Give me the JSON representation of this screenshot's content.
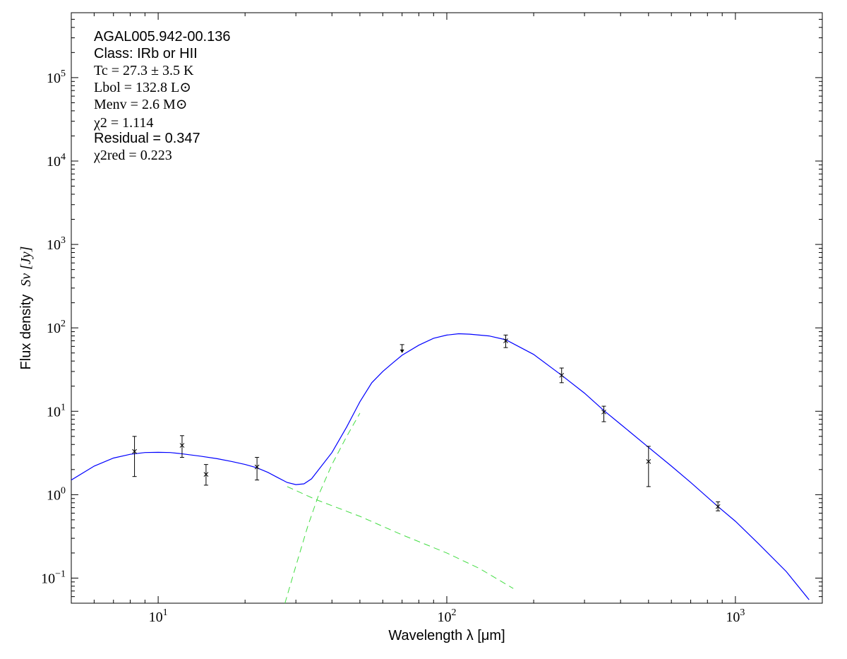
{
  "chart_data": {
    "type": "scatter",
    "xscale": "log",
    "yscale": "log",
    "xlim": [
      5,
      2000
    ],
    "ylim": [
      0.05,
      600000
    ],
    "xlabel": "Wavelength λ [μm]",
    "ylabel_prefix": "Flux density",
    "ylabel_math": "Sν [Jy]",
    "x_ticks": [
      {
        "value": 10,
        "base": "10",
        "exp": "1"
      },
      {
        "value": 100,
        "base": "10",
        "exp": "2"
      },
      {
        "value": 1000,
        "base": "10",
        "exp": "3"
      }
    ],
    "y_ticks": [
      {
        "value": 0.1,
        "base": "10",
        "exp": "−1"
      },
      {
        "value": 1,
        "base": "10",
        "exp": "0"
      },
      {
        "value": 10,
        "base": "10",
        "exp": "1"
      },
      {
        "value": 100,
        "base": "10",
        "exp": "2"
      },
      {
        "value": 1000,
        "base": "10",
        "exp": "3"
      },
      {
        "value": 10000,
        "base": "10",
        "exp": "4"
      },
      {
        "value": 100000,
        "base": "10",
        "exp": "5"
      }
    ],
    "annotations": {
      "source": "AGAL005.942-00.136",
      "class": "Class: IRb or HII",
      "tc": "Tc = 27.3 ± 3.5 K",
      "lbol": "Lbol = 132.8 L⊙",
      "menv": "Menv = 2.6 M⊙",
      "chi2": "χ2 = 1.114",
      "residual": "Residual = 0.347",
      "chi2red": "χ2red = 0.223"
    },
    "points": [
      {
        "x": 8.28,
        "y": 3.3,
        "ylow": 1.65,
        "yhigh": 5.0
      },
      {
        "x": 12.1,
        "y": 3.9,
        "ylow": 2.8,
        "yhigh": 5.1
      },
      {
        "x": 14.65,
        "y": 1.75,
        "ylow": 1.3,
        "yhigh": 2.3
      },
      {
        "x": 22.0,
        "y": 2.15,
        "ylow": 1.5,
        "yhigh": 2.8
      },
      {
        "x": 160,
        "y": 70,
        "ylow": 58,
        "yhigh": 82
      },
      {
        "x": 250,
        "y": 27,
        "ylow": 22,
        "yhigh": 33
      },
      {
        "x": 350,
        "y": 9.8,
        "ylow": 7.5,
        "yhigh": 11.5
      },
      {
        "x": 500,
        "y": 2.5,
        "ylow": 1.25,
        "yhigh": 3.8
      },
      {
        "x": 870,
        "y": 0.72,
        "ylow": 0.64,
        "yhigh": 0.82
      }
    ],
    "upper_limits": [
      {
        "x": 70,
        "y": 63
      }
    ],
    "series": [
      {
        "color": "#0000ff",
        "style": "solid",
        "points": [
          [
            5,
            1.5
          ],
          [
            6,
            2.2
          ],
          [
            7,
            2.75
          ],
          [
            8,
            3.05
          ],
          [
            9,
            3.2
          ],
          [
            10,
            3.22
          ],
          [
            11,
            3.2
          ],
          [
            12,
            3.1
          ],
          [
            14,
            2.9
          ],
          [
            16,
            2.7
          ],
          [
            18,
            2.5
          ],
          [
            20,
            2.3
          ],
          [
            22,
            2.1
          ],
          [
            24,
            1.85
          ],
          [
            26,
            1.6
          ],
          [
            28,
            1.4
          ],
          [
            30,
            1.32
          ],
          [
            32,
            1.35
          ],
          [
            34,
            1.55
          ],
          [
            36,
            2.0
          ],
          [
            40,
            3.2
          ],
          [
            45,
            6.5
          ],
          [
            50,
            13
          ],
          [
            55,
            22
          ],
          [
            60,
            30
          ],
          [
            65,
            38
          ],
          [
            70,
            47
          ],
          [
            80,
            62
          ],
          [
            90,
            75
          ],
          [
            100,
            82
          ],
          [
            110,
            85
          ],
          [
            120,
            84
          ],
          [
            140,
            80
          ],
          [
            160,
            72
          ],
          [
            200,
            48
          ],
          [
            250,
            27
          ],
          [
            300,
            16.5
          ],
          [
            350,
            10.2
          ],
          [
            400,
            7.0
          ],
          [
            500,
            3.7
          ],
          [
            600,
            2.2
          ],
          [
            700,
            1.4
          ],
          [
            870,
            0.72
          ],
          [
            1000,
            0.48
          ],
          [
            1200,
            0.26
          ],
          [
            1500,
            0.12
          ],
          [
            1800,
            0.055
          ]
        ]
      },
      {
        "color": "#44dd44",
        "style": "dashed",
        "points": [
          [
            28,
            1.25
          ],
          [
            35,
            0.88
          ],
          [
            50,
            0.55
          ],
          [
            70,
            0.33
          ],
          [
            100,
            0.2
          ],
          [
            130,
            0.13
          ],
          [
            170,
            0.075
          ]
        ]
      },
      {
        "color": "#44dd44",
        "style": "dashed",
        "points": [
          [
            27.5,
            0.05
          ],
          [
            30,
            0.14
          ],
          [
            33,
            0.42
          ],
          [
            36,
            1.0
          ],
          [
            40,
            2.3
          ],
          [
            45,
            5.0
          ],
          [
            50,
            9.5
          ]
        ]
      }
    ]
  }
}
